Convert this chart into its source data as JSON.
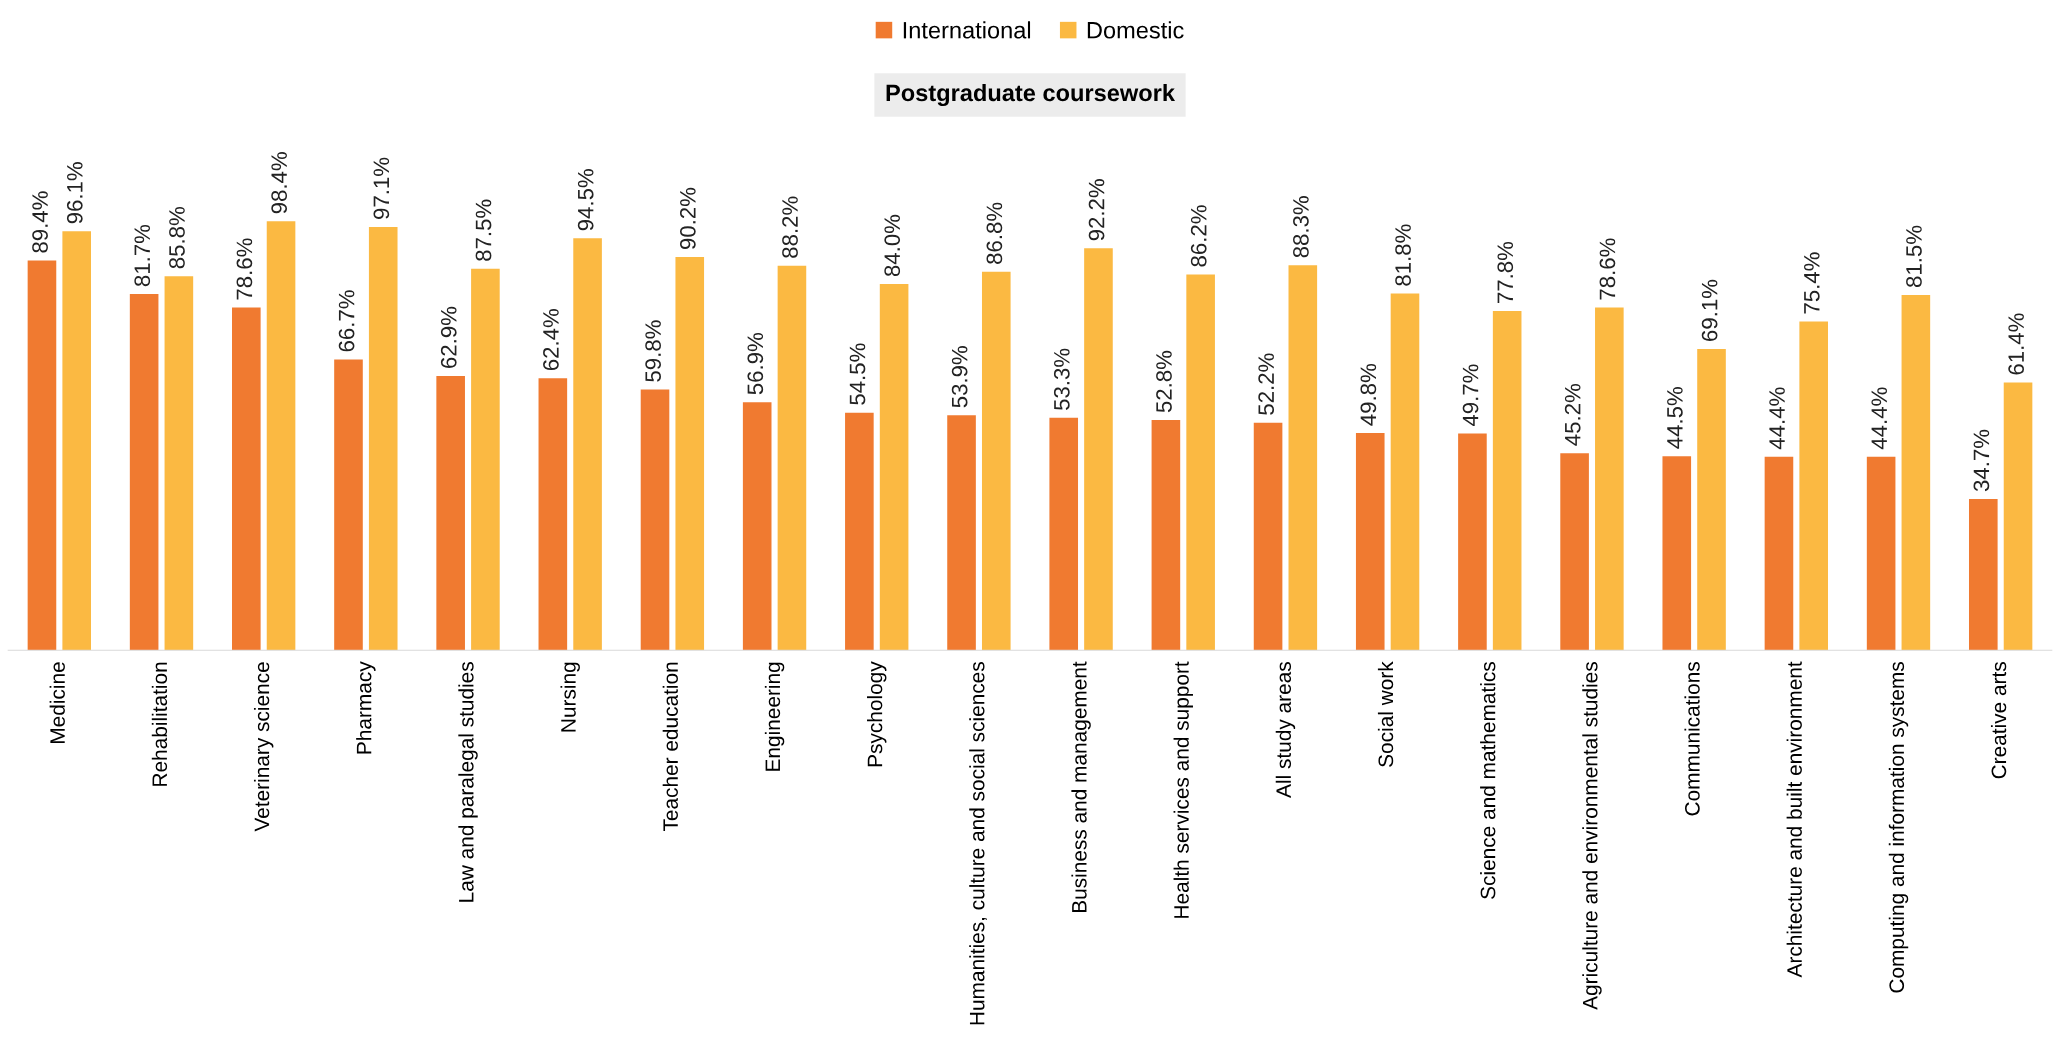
{
  "chart_data": {
    "type": "bar",
    "title": "Postgraduate coursework",
    "categories": [
      "Medicine",
      "Rehabilitation",
      "Veterinary science",
      "Pharmacy",
      "Law and paralegal studies",
      "Nursing",
      "Teacher education",
      "Engineering",
      "Psychology",
      "Humanities, culture and social sciences",
      "Business and management",
      "Health services and support",
      "All study areas",
      "Social work",
      "Science and mathematics",
      "Agriculture and environmental studies",
      "Communications",
      "Architecture and built environment",
      "Computing and information systems",
      "Creative arts"
    ],
    "series": [
      {
        "name": "International",
        "color": "#f07a30",
        "values": [
          89.4,
          81.7,
          78.6,
          66.7,
          62.9,
          62.4,
          59.8,
          56.9,
          54.5,
          53.9,
          53.3,
          52.8,
          52.2,
          49.8,
          49.7,
          45.2,
          44.5,
          44.4,
          44.4,
          34.7
        ],
        "value_labels": [
          "89.4%",
          "81.7%",
          "78.6%",
          "66.7%",
          "62.9%",
          "62.4%",
          "59.8%",
          "56.9%",
          "54.5%",
          "53.9%",
          "53.3%",
          "52.8%",
          "52.2%",
          "49.8%",
          "49.7%",
          "45.2%",
          "44.5%",
          "44.4%",
          "44.4%",
          "34.7%"
        ]
      },
      {
        "name": "Domestic",
        "color": "#fbb942",
        "values": [
          96.1,
          85.8,
          98.4,
          97.1,
          87.5,
          94.5,
          90.2,
          88.2,
          84.0,
          86.8,
          92.2,
          86.2,
          88.3,
          81.8,
          77.8,
          78.6,
          69.1,
          75.4,
          81.5,
          61.4
        ],
        "value_labels": [
          "96.1%",
          "85.8%",
          "98.4%",
          "97.1%",
          "87.5%",
          "94.5%",
          "90.2%",
          "88.2%",
          "84.0%",
          "86.8%",
          "92.2%",
          "86.2%",
          "88.3%",
          "81.8%",
          "77.8%",
          "78.6%",
          "69.1%",
          "75.4%",
          "81.5%",
          "61.4%"
        ]
      }
    ],
    "legend": "top",
    "grid": false,
    "tick_labels": "x"
  }
}
